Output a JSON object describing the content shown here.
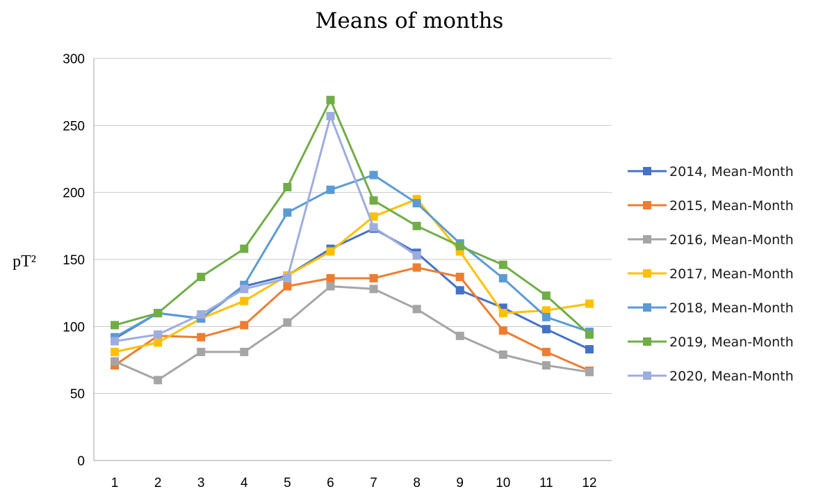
{
  "chart_data": {
    "type": "line",
    "title": "Means of months",
    "xlabel": "",
    "ylabel": "pT²",
    "x": [
      1,
      2,
      3,
      4,
      5,
      6,
      7,
      8,
      9,
      10,
      11,
      12
    ],
    "ylim": [
      0,
      300
    ],
    "yticks": [
      0,
      50,
      100,
      150,
      200,
      250,
      300
    ],
    "grid": true,
    "legend_position": "right",
    "series": [
      {
        "name": "2014, Mean-Month",
        "color": "#4472C4",
        "values": [
          91,
          110,
          106,
          130,
          138,
          158,
          173,
          155,
          127,
          114,
          98,
          83
        ]
      },
      {
        "name": "2015, Mean-Month",
        "color": "#ED7D31",
        "values": [
          71,
          93,
          92,
          101,
          130,
          136,
          136,
          144,
          137,
          97,
          81,
          67
        ]
      },
      {
        "name": "2016, Mean-Month",
        "color": "#A5A5A5",
        "values": [
          74,
          60,
          81,
          81,
          103,
          130,
          128,
          113,
          93,
          79,
          71,
          66
        ]
      },
      {
        "name": "2017, Mean-Month",
        "color": "#FFC000",
        "values": [
          81,
          88,
          106,
          119,
          138,
          156,
          182,
          195,
          156,
          110,
          112,
          117
        ]
      },
      {
        "name": "2018, Mean-Month",
        "color": "#5B9BD5",
        "values": [
          92,
          110,
          106,
          131,
          185,
          202,
          213,
          192,
          162,
          136,
          107,
          96
        ]
      },
      {
        "name": "2019, Mean-Month",
        "color": "#70AD47",
        "values": [
          101,
          110,
          137,
          158,
          204,
          269,
          194,
          175,
          160,
          146,
          123,
          94
        ]
      },
      {
        "name": "2020, Mean-Month",
        "color": "#9EADDF",
        "values": [
          89,
          94,
          109,
          128,
          136,
          257,
          174,
          153,
          null,
          null,
          null,
          null
        ]
      }
    ]
  }
}
